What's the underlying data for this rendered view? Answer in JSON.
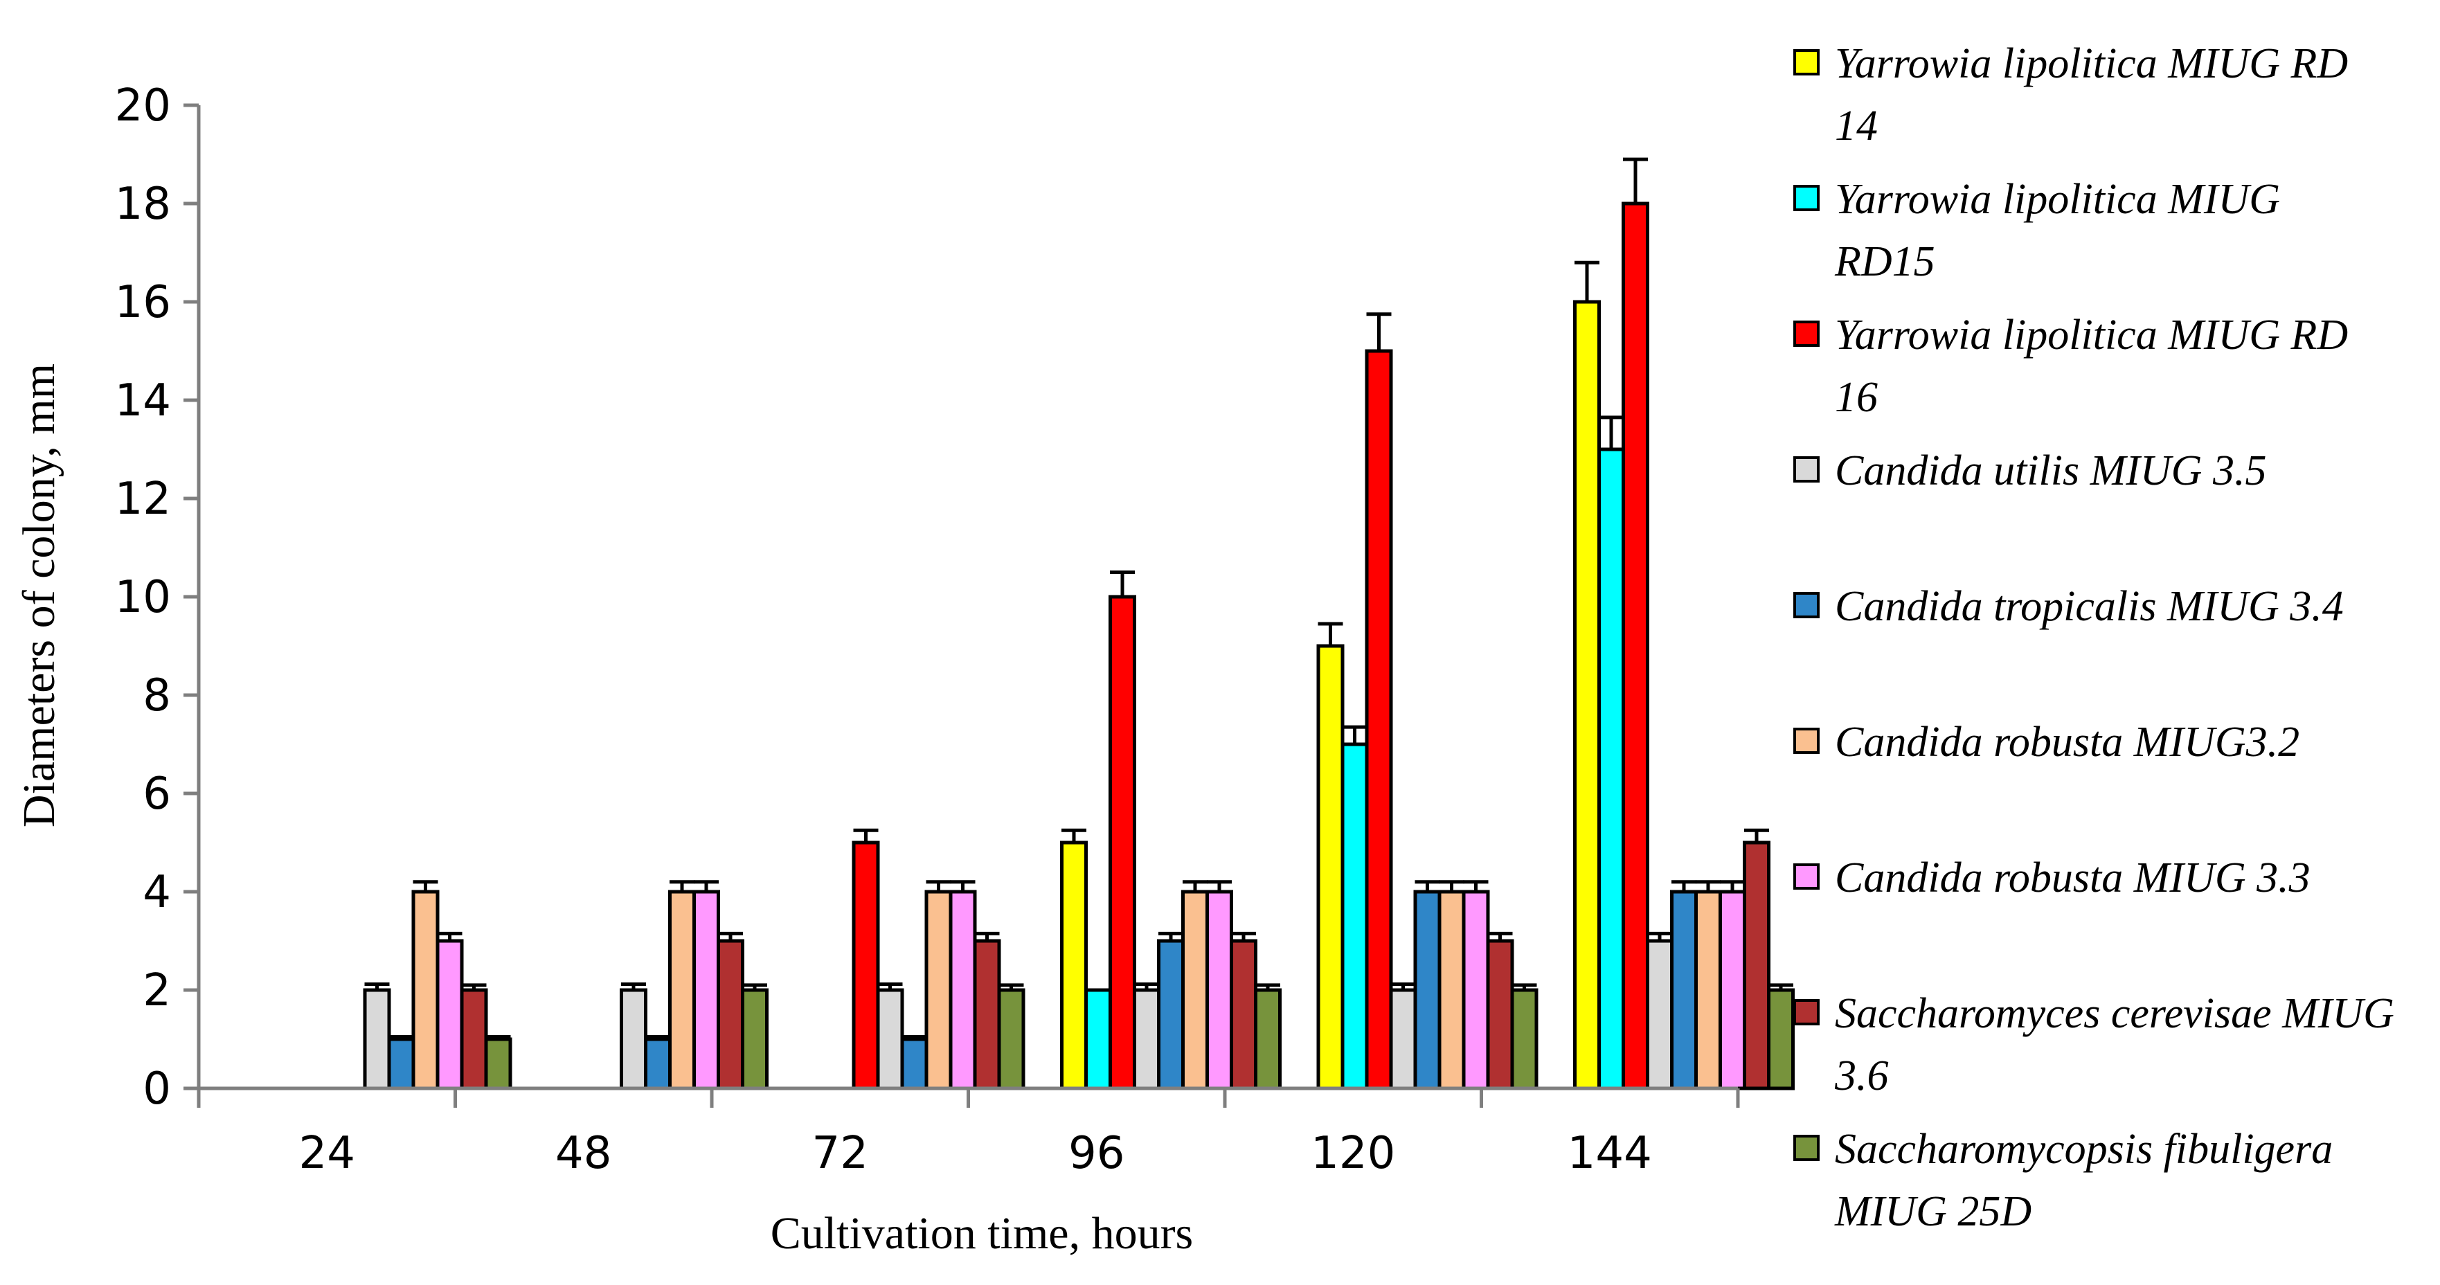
{
  "chart_data": {
    "type": "bar",
    "title": "",
    "xlabel": "Cultivation time, hours",
    "ylabel": "Diameters of colony, mm",
    "ylim": [
      0,
      20
    ],
    "yticks": [
      "0",
      "2",
      "4",
      "6",
      "8",
      "10",
      "12",
      "14",
      "16",
      "18",
      "20"
    ],
    "categories": [
      "24",
      "48",
      "72",
      "96",
      "120",
      "144"
    ],
    "grid": false,
    "legend_position": "right",
    "series": [
      {
        "name": "Yarrowia lipolitica MIUG RD 14",
        "legend_lines": [
          "Yarrowia lipolitica MIUG RD",
          "14"
        ],
        "color": "#ffff00",
        "values": [
          0,
          0,
          0,
          5,
          9,
          16
        ],
        "errors": [
          0,
          0,
          0,
          0.25,
          0.45,
          0.8
        ]
      },
      {
        "name": "Yarrowia lipolitica MIUG RD15",
        "legend_lines": [
          "Yarrowia lipolitica MIUG",
          "RD15"
        ],
        "color": "#00ffff",
        "values": [
          0,
          0,
          0,
          2,
          7,
          13
        ],
        "errors": [
          0,
          0,
          0,
          0,
          0.35,
          0.65
        ]
      },
      {
        "name": "Yarrowia lipolitica MIUG RD 16",
        "legend_lines": [
          "Yarrowia lipolitica MIUG RD",
          "16"
        ],
        "color": "#ff0000",
        "values": [
          0,
          0,
          5,
          10,
          15,
          18
        ],
        "errors": [
          0,
          0,
          0.25,
          0.5,
          0.75,
          0.9
        ]
      },
      {
        "name": "Candida utilis MIUG 3.5",
        "legend_lines": [
          "Candida utilis MIUG 3.5"
        ],
        "color": "#d9d9d9",
        "values": [
          2,
          2,
          2,
          2,
          2,
          3
        ],
        "errors": [
          0.12,
          0.12,
          0.12,
          0.12,
          0.12,
          0.15
        ]
      },
      {
        "name": "Candida tropicalis MIUG 3.4",
        "legend_lines": [
          "Candida tropicalis MIUG 3.4"
        ],
        "color": "#2f86c8",
        "values": [
          1,
          1,
          1,
          3,
          4,
          4
        ],
        "errors": [
          0.05,
          0.05,
          0.05,
          0.15,
          0.2,
          0.2
        ]
      },
      {
        "name": "Candida robusta MIUG3.2",
        "legend_lines": [
          "Candida robusta MIUG3.2"
        ],
        "color": "#fac090",
        "values": [
          4,
          4,
          4,
          4,
          4,
          4
        ],
        "errors": [
          0.2,
          0.2,
          0.2,
          0.2,
          0.2,
          0.2
        ]
      },
      {
        "name": "Candida robusta MIUG 3.3",
        "legend_lines": [
          "Candida robusta MIUG 3.3"
        ],
        "color": "#ff99ff",
        "values": [
          3,
          4,
          4,
          4,
          4,
          4
        ],
        "errors": [
          0.15,
          0.2,
          0.2,
          0.2,
          0.2,
          0.2
        ]
      },
      {
        "name": "Saccharomyces cerevisae MIUG 3.6",
        "legend_lines": [
          "Saccharomyces cerevisae MIUG",
          "3.6"
        ],
        "color": "#b03030",
        "values": [
          2,
          3,
          3,
          3,
          3,
          5
        ],
        "errors": [
          0.1,
          0.15,
          0.15,
          0.15,
          0.15,
          0.25
        ]
      },
      {
        "name": "Saccharomycopsis fibuligera MIUG 25D",
        "legend_lines": [
          "Saccharomycopsis fibuligera",
          "MIUG 25D"
        ],
        "color": "#77933c",
        "values": [
          1,
          2,
          2,
          2,
          2,
          2
        ],
        "errors": [
          0.05,
          0.1,
          0.1,
          0.1,
          0.1,
          0.1
        ]
      }
    ]
  }
}
